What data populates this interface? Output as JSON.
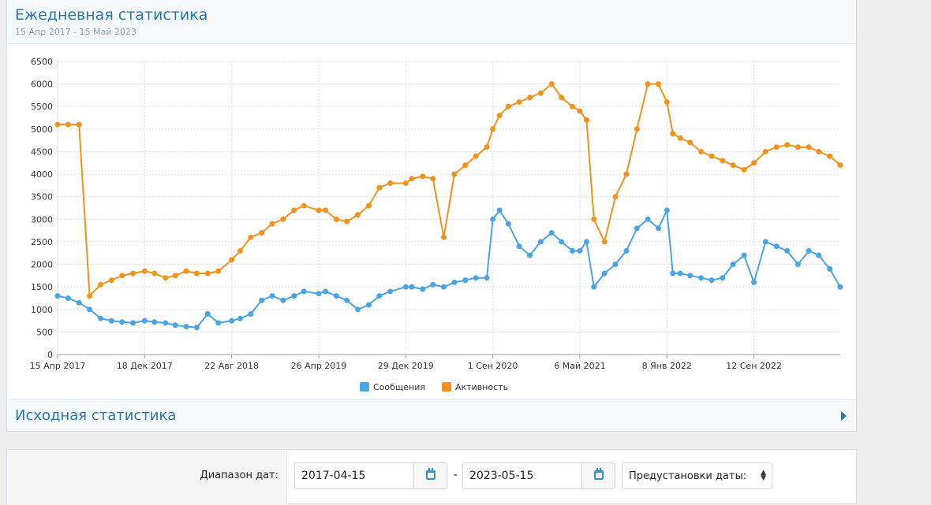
{
  "panel": {
    "title": "Ежедневная статистика",
    "subtitle": "15 Апр 2017 - 15 Май 2023"
  },
  "collapsed_section": {
    "title": "Исходная статистика"
  },
  "form": {
    "date_range_label": "Диапазон дат:",
    "start_date": "2017-04-15",
    "end_date": "2023-05-15",
    "separator": "-",
    "presets_label": "Предустановки даты:"
  },
  "chart_data": {
    "type": "line",
    "x_range": [
      "2017-04-15",
      "2023-05-15"
    ],
    "ylim": [
      0,
      6500
    ],
    "y_ticks": [
      0,
      500,
      1000,
      1500,
      2000,
      2500,
      3000,
      3500,
      4000,
      4500,
      5000,
      5500,
      6000,
      6500
    ],
    "x_ticks": [
      {
        "date": "2017-04-15",
        "label": "15 Апр 2017"
      },
      {
        "date": "2017-12-18",
        "label": "18 Дек 2017"
      },
      {
        "date": "2018-08-22",
        "label": "22 Авг 2018"
      },
      {
        "date": "2019-04-26",
        "label": "26 Апр 2019"
      },
      {
        "date": "2019-12-29",
        "label": "29 Дек 2019"
      },
      {
        "date": "2020-09-01",
        "label": "1 Сен 2020"
      },
      {
        "date": "2021-05-06",
        "label": "6 Май 2021"
      },
      {
        "date": "2022-01-08",
        "label": "8 Янв 2022"
      },
      {
        "date": "2022-09-12",
        "label": "12 Сен 2022"
      }
    ],
    "grid": true,
    "legend_position": "bottom-center",
    "series": [
      {
        "name": "Сообщения",
        "color": "#4aa3e3",
        "points": [
          [
            "2017-04-15",
            1300
          ],
          [
            "2017-05-15",
            1250
          ],
          [
            "2017-06-15",
            1150
          ],
          [
            "2017-07-15",
            1000
          ],
          [
            "2017-08-15",
            800
          ],
          [
            "2017-09-15",
            750
          ],
          [
            "2017-10-15",
            720
          ],
          [
            "2017-11-15",
            700
          ],
          [
            "2017-12-18",
            750
          ],
          [
            "2018-01-15",
            720
          ],
          [
            "2018-02-15",
            700
          ],
          [
            "2018-03-15",
            650
          ],
          [
            "2018-04-15",
            620
          ],
          [
            "2018-05-15",
            600
          ],
          [
            "2018-06-15",
            900
          ],
          [
            "2018-07-15",
            700
          ],
          [
            "2018-08-22",
            750
          ],
          [
            "2018-09-15",
            800
          ],
          [
            "2018-10-15",
            900
          ],
          [
            "2018-11-15",
            1200
          ],
          [
            "2018-12-15",
            1300
          ],
          [
            "2019-01-15",
            1200
          ],
          [
            "2019-02-15",
            1300
          ],
          [
            "2019-03-15",
            1400
          ],
          [
            "2019-04-26",
            1350
          ],
          [
            "2019-05-15",
            1400
          ],
          [
            "2019-06-15",
            1300
          ],
          [
            "2019-07-15",
            1200
          ],
          [
            "2019-08-15",
            1000
          ],
          [
            "2019-09-15",
            1100
          ],
          [
            "2019-10-15",
            1300
          ],
          [
            "2019-11-15",
            1400
          ],
          [
            "2019-12-29",
            1500
          ],
          [
            "2020-01-15",
            1500
          ],
          [
            "2020-02-15",
            1450
          ],
          [
            "2020-03-15",
            1550
          ],
          [
            "2020-04-15",
            1500
          ],
          [
            "2020-05-15",
            1600
          ],
          [
            "2020-06-15",
            1650
          ],
          [
            "2020-07-15",
            1700
          ],
          [
            "2020-08-15",
            1700
          ],
          [
            "2020-09-01",
            3000
          ],
          [
            "2020-09-20",
            3200
          ],
          [
            "2020-10-15",
            2900
          ],
          [
            "2020-11-15",
            2400
          ],
          [
            "2020-12-15",
            2200
          ],
          [
            "2021-01-15",
            2500
          ],
          [
            "2021-02-15",
            2700
          ],
          [
            "2021-03-15",
            2500
          ],
          [
            "2021-04-15",
            2300
          ],
          [
            "2021-05-06",
            2300
          ],
          [
            "2021-05-25",
            2500
          ],
          [
            "2021-06-15",
            1500
          ],
          [
            "2021-07-15",
            1800
          ],
          [
            "2021-08-15",
            2000
          ],
          [
            "2021-09-15",
            2300
          ],
          [
            "2021-10-15",
            2800
          ],
          [
            "2021-11-15",
            3000
          ],
          [
            "2021-12-15",
            2800
          ],
          [
            "2022-01-08",
            3200
          ],
          [
            "2022-01-25",
            1800
          ],
          [
            "2022-02-15",
            1800
          ],
          [
            "2022-03-15",
            1750
          ],
          [
            "2022-04-15",
            1700
          ],
          [
            "2022-05-15",
            1650
          ],
          [
            "2022-06-15",
            1700
          ],
          [
            "2022-07-15",
            2000
          ],
          [
            "2022-08-15",
            2200
          ],
          [
            "2022-09-12",
            1600
          ],
          [
            "2022-10-15",
            2500
          ],
          [
            "2022-11-15",
            2400
          ],
          [
            "2022-12-15",
            2300
          ],
          [
            "2023-01-15",
            2000
          ],
          [
            "2023-02-15",
            2300
          ],
          [
            "2023-03-15",
            2200
          ],
          [
            "2023-04-15",
            1900
          ],
          [
            "2023-05-15",
            1500
          ]
        ]
      },
      {
        "name": "Активность",
        "color": "#f0921b",
        "points": [
          [
            "2017-04-15",
            5100
          ],
          [
            "2017-05-15",
            5100
          ],
          [
            "2017-06-15",
            5100
          ],
          [
            "2017-07-15",
            1300
          ],
          [
            "2017-08-15",
            1550
          ],
          [
            "2017-09-15",
            1650
          ],
          [
            "2017-10-15",
            1750
          ],
          [
            "2017-11-15",
            1800
          ],
          [
            "2017-12-18",
            1850
          ],
          [
            "2018-01-15",
            1800
          ],
          [
            "2018-02-15",
            1700
          ],
          [
            "2018-03-15",
            1750
          ],
          [
            "2018-04-15",
            1850
          ],
          [
            "2018-05-15",
            1800
          ],
          [
            "2018-06-15",
            1800
          ],
          [
            "2018-07-15",
            1850
          ],
          [
            "2018-08-22",
            2100
          ],
          [
            "2018-09-15",
            2300
          ],
          [
            "2018-10-15",
            2600
          ],
          [
            "2018-11-15",
            2700
          ],
          [
            "2018-12-15",
            2900
          ],
          [
            "2019-01-15",
            3000
          ],
          [
            "2019-02-15",
            3200
          ],
          [
            "2019-03-15",
            3300
          ],
          [
            "2019-04-26",
            3200
          ],
          [
            "2019-05-15",
            3200
          ],
          [
            "2019-06-15",
            3000
          ],
          [
            "2019-07-15",
            2950
          ],
          [
            "2019-08-15",
            3100
          ],
          [
            "2019-09-15",
            3300
          ],
          [
            "2019-10-15",
            3700
          ],
          [
            "2019-11-15",
            3800
          ],
          [
            "2019-12-29",
            3800
          ],
          [
            "2020-01-15",
            3900
          ],
          [
            "2020-02-15",
            3950
          ],
          [
            "2020-03-15",
            3900
          ],
          [
            "2020-04-15",
            2600
          ],
          [
            "2020-05-15",
            4000
          ],
          [
            "2020-06-15",
            4200
          ],
          [
            "2020-07-15",
            4400
          ],
          [
            "2020-08-15",
            4600
          ],
          [
            "2020-09-01",
            5000
          ],
          [
            "2020-09-20",
            5300
          ],
          [
            "2020-10-15",
            5500
          ],
          [
            "2020-11-15",
            5600
          ],
          [
            "2020-12-15",
            5700
          ],
          [
            "2021-01-15",
            5800
          ],
          [
            "2021-02-15",
            6000
          ],
          [
            "2021-03-15",
            5700
          ],
          [
            "2021-04-15",
            5500
          ],
          [
            "2021-05-06",
            5400
          ],
          [
            "2021-05-25",
            5200
          ],
          [
            "2021-06-15",
            3000
          ],
          [
            "2021-07-15",
            2500
          ],
          [
            "2021-08-15",
            3500
          ],
          [
            "2021-09-15",
            4000
          ],
          [
            "2021-10-15",
            5000
          ],
          [
            "2021-11-15",
            6000
          ],
          [
            "2021-12-15",
            6000
          ],
          [
            "2022-01-08",
            5600
          ],
          [
            "2022-01-25",
            4900
          ],
          [
            "2022-02-15",
            4800
          ],
          [
            "2022-03-15",
            4700
          ],
          [
            "2022-04-15",
            4500
          ],
          [
            "2022-05-15",
            4400
          ],
          [
            "2022-06-15",
            4300
          ],
          [
            "2022-07-15",
            4200
          ],
          [
            "2022-08-15",
            4100
          ],
          [
            "2022-09-12",
            4250
          ],
          [
            "2022-10-15",
            4500
          ],
          [
            "2022-11-15",
            4600
          ],
          [
            "2022-12-15",
            4650
          ],
          [
            "2023-01-15",
            4600
          ],
          [
            "2023-02-15",
            4600
          ],
          [
            "2023-03-15",
            4500
          ],
          [
            "2023-04-15",
            4400
          ],
          [
            "2023-05-15",
            4200
          ]
        ]
      }
    ]
  }
}
